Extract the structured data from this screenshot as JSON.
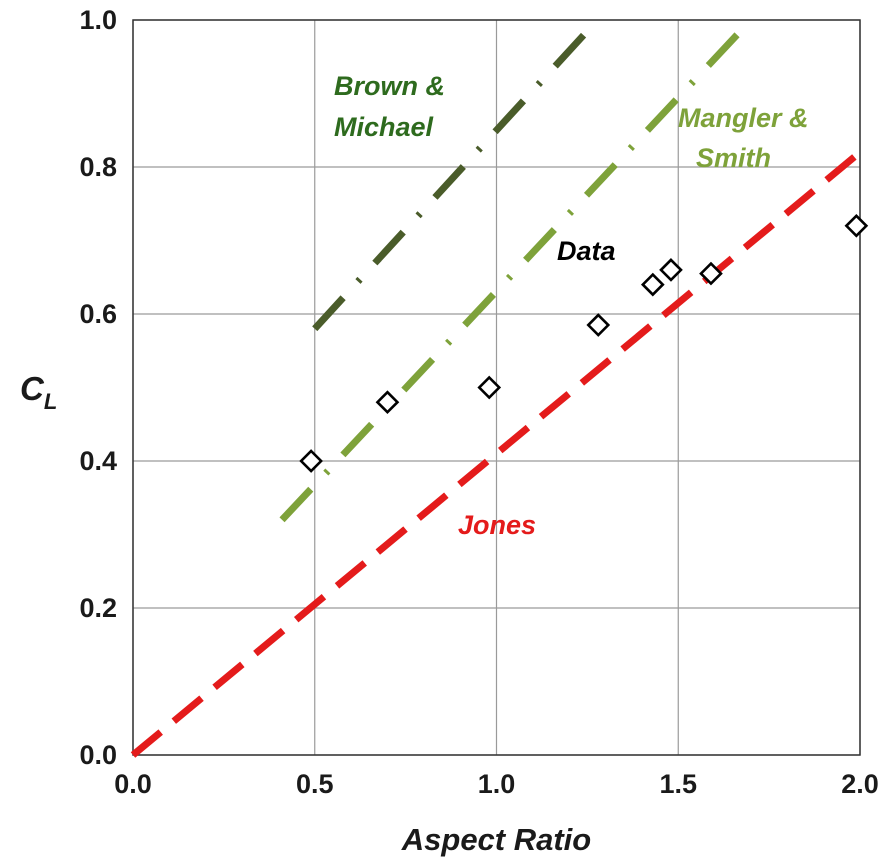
{
  "chart_data": {
    "type": "line",
    "xlabel": "Aspect Ratio",
    "ylabel": {
      "main": "C",
      "subscript": "L"
    },
    "xlim": [
      0,
      2
    ],
    "ylim": [
      0,
      1
    ],
    "xticks": [
      "0.0",
      "0.5",
      "1.0",
      "1.5",
      "2.0"
    ],
    "yticks": [
      "0.0",
      "0.2",
      "0.4",
      "0.6",
      "0.8",
      "1.0"
    ],
    "grid": true,
    "series": [
      {
        "key": "brown-michael",
        "label_lines": [
          "Brown &",
          "Michael"
        ],
        "color": "#4a5c2a",
        "style": "dash-dot",
        "x": [
          0.5,
          1.25
        ],
        "y": [
          0.58,
          0.985
        ]
      },
      {
        "key": "mangler-smith",
        "label_lines": [
          "Mangler &",
          "Smith"
        ],
        "color": "#7ea23a",
        "style": "dash-dot",
        "x": [
          0.41,
          1.7
        ],
        "y": [
          0.32,
          1.0
        ]
      },
      {
        "key": "jones",
        "label_lines": [
          "Jones"
        ],
        "color": "#e41b1b",
        "style": "dashed",
        "x": [
          0.0,
          2.0
        ],
        "y": [
          0.0,
          0.82
        ]
      },
      {
        "key": "data",
        "label_lines": [
          "Data"
        ],
        "color": "#000000",
        "style": "markers",
        "marker": "diamond",
        "x": [
          0.49,
          0.7,
          0.98,
          1.28,
          1.43,
          1.48,
          1.59,
          1.99
        ],
        "y": [
          0.4,
          0.48,
          0.5,
          0.585,
          0.64,
          0.66,
          0.655,
          0.72
        ]
      }
    ]
  }
}
